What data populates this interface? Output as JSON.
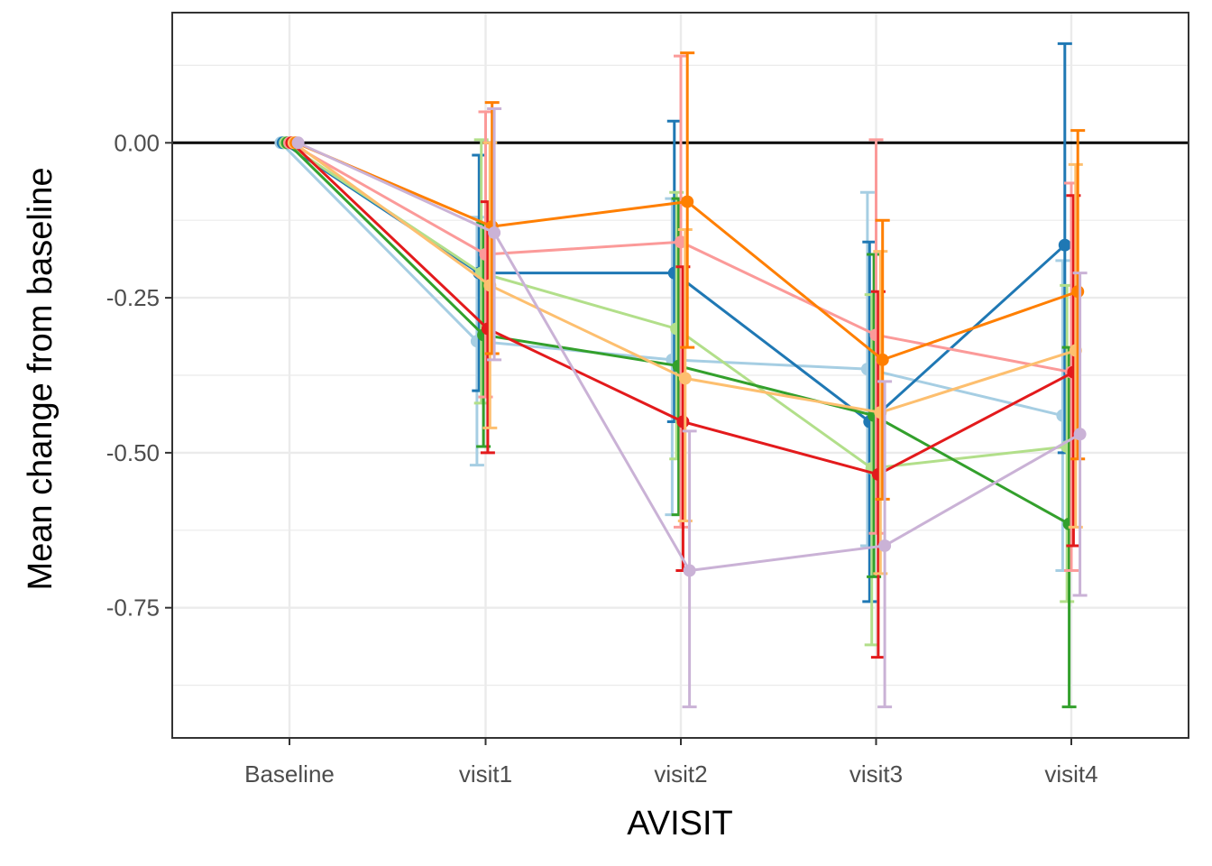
{
  "chart_data": {
    "type": "line",
    "xlabel": "AVISIT",
    "ylabel": "Mean change from baseline",
    "categories": [
      "Baseline",
      "visit1",
      "visit2",
      "visit3",
      "visit4"
    ],
    "ylim": [
      -0.96,
      0.21
    ],
    "y_ticks": [
      0.0,
      -0.25,
      -0.5,
      -0.75
    ],
    "y_tick_labels": [
      "0.00",
      "-0.25",
      "-0.50",
      "-0.75"
    ],
    "reference_line": 0,
    "grid": true,
    "legend": "none",
    "error_bars": true,
    "series": [
      {
        "color": "#a6cee3",
        "values": [
          0,
          -0.32,
          -0.35,
          -0.365,
          -0.44
        ],
        "lower": [
          0,
          -0.52,
          -0.6,
          -0.65,
          -0.69
        ],
        "upper": [
          0,
          -0.12,
          -0.09,
          -0.08,
          -0.19
        ]
      },
      {
        "color": "#1f78b4",
        "values": [
          0,
          -0.21,
          -0.21,
          -0.45,
          -0.165
        ],
        "lower": [
          0,
          -0.4,
          -0.45,
          -0.74,
          -0.5
        ],
        "upper": [
          0,
          -0.02,
          0.035,
          -0.16,
          0.16
        ]
      },
      {
        "color": "#b2df8a",
        "values": [
          0,
          -0.21,
          -0.3,
          -0.525,
          -0.49
        ],
        "lower": [
          0,
          -0.42,
          -0.51,
          -0.81,
          -0.74
        ],
        "upper": [
          0,
          0.005,
          -0.08,
          -0.245,
          -0.23
        ]
      },
      {
        "color": "#33a02c",
        "values": [
          0,
          -0.31,
          -0.36,
          -0.44,
          -0.615
        ],
        "lower": [
          0,
          -0.49,
          -0.6,
          -0.7,
          -0.91
        ],
        "upper": [
          0,
          -0.13,
          -0.09,
          -0.18,
          -0.33
        ]
      },
      {
        "color": "#fb9a99",
        "values": [
          0,
          -0.18,
          -0.16,
          -0.31,
          -0.37
        ],
        "lower": [
          0,
          -0.41,
          -0.62,
          -0.63,
          -0.69
        ],
        "upper": [
          0,
          0.05,
          0.14,
          0.005,
          -0.065
        ]
      },
      {
        "color": "#e31a1c",
        "values": [
          0,
          -0.3,
          -0.45,
          -0.535,
          -0.37
        ],
        "lower": [
          0,
          -0.5,
          -0.69,
          -0.83,
          -0.65
        ],
        "upper": [
          0,
          -0.095,
          -0.2,
          -0.24,
          -0.085
        ]
      },
      {
        "color": "#fdbf6f",
        "values": [
          0,
          -0.23,
          -0.38,
          -0.435,
          -0.335
        ],
        "lower": [
          0,
          -0.46,
          -0.61,
          -0.695,
          -0.62
        ],
        "upper": [
          0,
          0.0,
          -0.14,
          -0.175,
          -0.035
        ]
      },
      {
        "color": "#ff7f00",
        "values": [
          0,
          -0.135,
          -0.095,
          -0.35,
          -0.24
        ],
        "lower": [
          0,
          -0.34,
          -0.33,
          -0.575,
          -0.51
        ],
        "upper": [
          0,
          0.065,
          0.145,
          -0.125,
          0.02
        ]
      },
      {
        "color": "#cab2d6",
        "values": [
          0,
          -0.145,
          -0.69,
          -0.65,
          -0.47
        ],
        "lower": [
          0,
          -0.35,
          -0.91,
          -0.91,
          -0.73
        ],
        "upper": [
          0,
          0.055,
          -0.465,
          -0.385,
          -0.21
        ]
      }
    ]
  }
}
